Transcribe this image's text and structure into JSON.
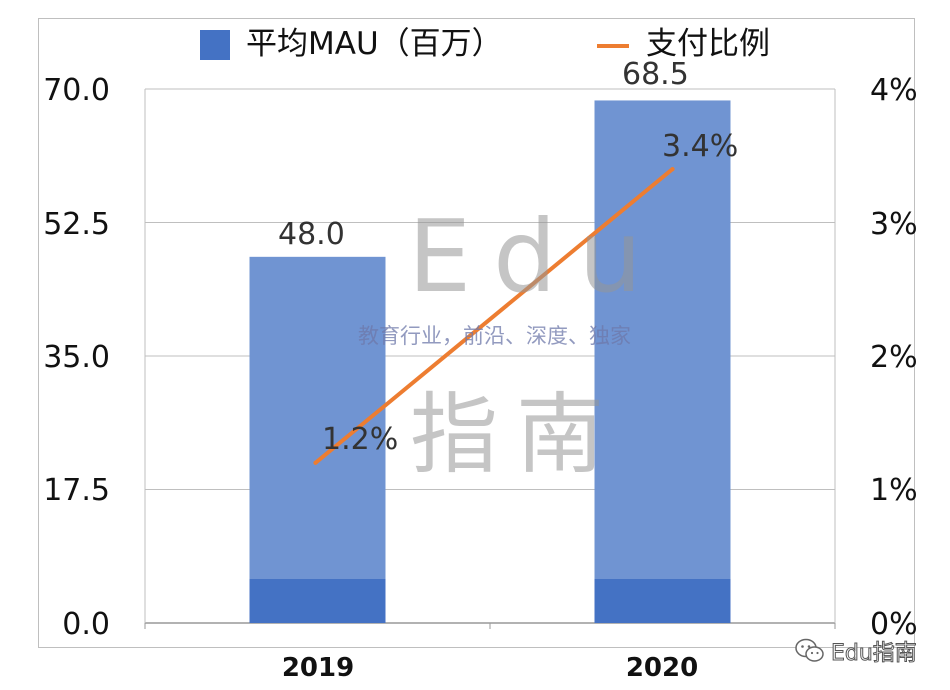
{
  "chart_data": {
    "type": "bar",
    "categories": [
      "2019",
      "2020"
    ],
    "series": [
      {
        "name": "平均MAU（百万）",
        "type": "bar",
        "axis": "left",
        "values": [
          48.0,
          68.5
        ],
        "color": "#4472C4"
      },
      {
        "name": "支付比例",
        "type": "line",
        "axis": "right",
        "values": [
          1.2,
          3.4
        ],
        "unit": "%",
        "color": "#ED7D31"
      }
    ],
    "left_axis": {
      "ticks": [
        "70.0",
        "52.5",
        "35.0",
        "17.5",
        "0.0"
      ],
      "ylim": [
        0,
        70
      ]
    },
    "right_axis": {
      "ticks": [
        "4%",
        "3%",
        "2%",
        "1%",
        "0%"
      ],
      "ylim": [
        0,
        4
      ]
    },
    "data_labels": {
      "bars": [
        "48.0",
        "68.5"
      ],
      "line": [
        "1.2%",
        "3.4%"
      ]
    },
    "grid": true,
    "legend": "top"
  },
  "legend": {
    "bar_label": "平均MAU（百万）",
    "line_label": "支付比例"
  },
  "watermark": {
    "big_top": "Edu",
    "sub": "教育行业，前沿、深度、独家",
    "big_bottom": "指南"
  },
  "source_tag": {
    "text": "Edu指南",
    "icon": "wechat-icon"
  },
  "colors": {
    "bar": "#4472C4",
    "bar_light": "#7094D2",
    "line": "#ED7D31",
    "grid": "#bfbfbf"
  }
}
